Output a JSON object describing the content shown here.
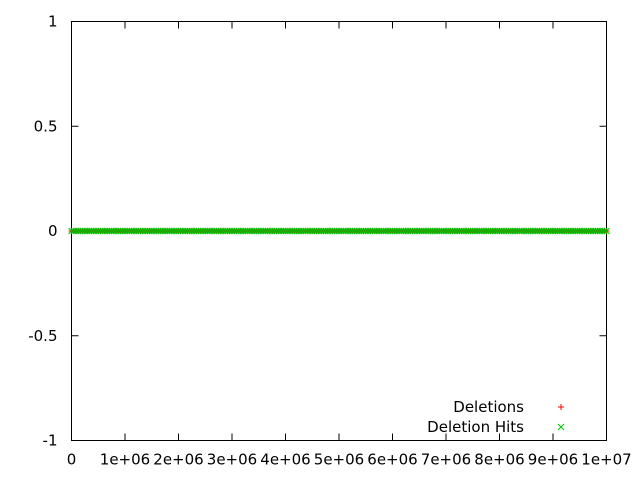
{
  "chart_data": {
    "type": "scatter",
    "title": "",
    "xlabel": "",
    "ylabel": "",
    "xlim": [
      0,
      10000000
    ],
    "ylim": [
      -1,
      1
    ],
    "x_ticks": [
      0,
      1000000,
      2000000,
      3000000,
      4000000,
      5000000,
      6000000,
      7000000,
      8000000,
      9000000,
      10000000
    ],
    "x_tick_labels": [
      "0",
      "1e+06",
      "2e+06",
      "3e+06",
      "4e+06",
      "5e+06",
      "6e+06",
      "7e+06",
      "8e+06",
      "9e+06",
      "1e+07"
    ],
    "y_ticks": [
      -1,
      -0.5,
      0,
      0.5,
      1
    ],
    "y_tick_labels": [
      "-1",
      "-0.5",
      "0",
      "0.5",
      "1"
    ],
    "grid": false,
    "legend_position": "bottom-right",
    "series": [
      {
        "name": "Deletions",
        "marker": "plus",
        "color": "#ff0000",
        "x_range": [
          0,
          10000000
        ],
        "y": 0
      },
      {
        "name": "Deletion Hits",
        "marker": "cross",
        "color": "#00c000",
        "x_range": [
          0,
          10000000
        ],
        "y": 0
      }
    ]
  }
}
